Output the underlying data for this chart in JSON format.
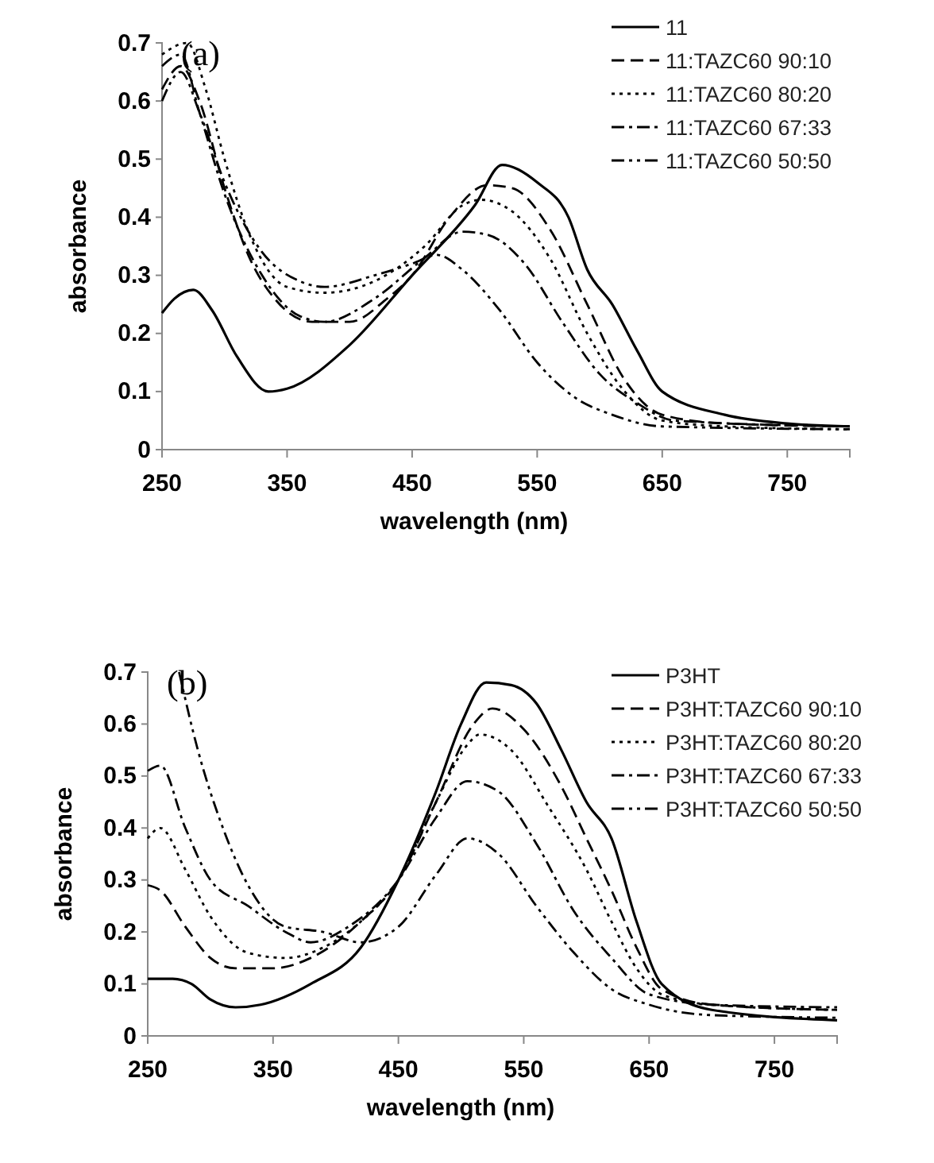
{
  "chart_data": [
    {
      "type": "line",
      "xlabel": "wavelength (nm)",
      "ylabel": "absorbance",
      "annotations": [
        "(a)"
      ],
      "xlim": [
        250,
        800
      ],
      "xticks": [
        250,
        350,
        450,
        550,
        650,
        750
      ],
      "ylim": [
        0,
        0.7
      ],
      "yticks": [
        0,
        0.1,
        0.2,
        0.3,
        0.4,
        0.5,
        0.6,
        0.7
      ],
      "grid": false,
      "legend": "top right",
      "marker": "none",
      "series": [
        {
          "name": "11",
          "color": "#000000",
          "line_style": "solid",
          "x": [
            250,
            260,
            275,
            290,
            310,
            335,
            350,
            400,
            450,
            500,
            522,
            550,
            575,
            590,
            610,
            630,
            650,
            700,
            750,
            800
          ],
          "values": [
            0.235,
            0.26,
            0.275,
            0.24,
            0.16,
            0.1,
            0.105,
            0.18,
            0.3,
            0.42,
            0.49,
            0.46,
            0.4,
            0.31,
            0.25,
            0.17,
            0.1,
            0.06,
            0.045,
            0.04
          ]
        },
        {
          "name": "11:TAZC60 90:10",
          "color": "#000000",
          "line_style": "dashed",
          "x": [
            250,
            265,
            280,
            300,
            320,
            340,
            370,
            400,
            430,
            450,
            480,
            510,
            530,
            560,
            590,
            620,
            650,
            700,
            800
          ],
          "values": [
            0.62,
            0.66,
            0.6,
            0.45,
            0.33,
            0.26,
            0.22,
            0.22,
            0.26,
            0.3,
            0.4,
            0.455,
            0.45,
            0.38,
            0.25,
            0.12,
            0.06,
            0.045,
            0.04
          ]
        },
        {
          "name": "11:TAZC60 80:20",
          "color": "#000000",
          "line_style": "dotted",
          "x": [
            250,
            270,
            285,
            300,
            320,
            350,
            380,
            420,
            460,
            490,
            505,
            530,
            560,
            590,
            620,
            650,
            700,
            800
          ],
          "values": [
            0.68,
            0.7,
            0.62,
            0.5,
            0.37,
            0.28,
            0.27,
            0.29,
            0.35,
            0.42,
            0.43,
            0.41,
            0.33,
            0.2,
            0.1,
            0.05,
            0.04,
            0.035
          ]
        },
        {
          "name": "11:TAZC60 67:33",
          "color": "#000000",
          "line_style": "dashdot",
          "x": [
            250,
            265,
            280,
            300,
            330,
            360,
            380,
            420,
            460,
            490,
            510,
            540,
            570,
            600,
            630,
            660,
            800
          ],
          "values": [
            0.66,
            0.68,
            0.58,
            0.44,
            0.3,
            0.23,
            0.22,
            0.26,
            0.33,
            0.375,
            0.37,
            0.32,
            0.22,
            0.13,
            0.08,
            0.05,
            0.04
          ]
        },
        {
          "name": "11:TAZC60 50:50",
          "color": "#000000",
          "line_style": "dashdotdot",
          "x": [
            250,
            265,
            280,
            300,
            330,
            360,
            380,
            420,
            450,
            470,
            490,
            520,
            550,
            580,
            610,
            650,
            800
          ],
          "values": [
            0.6,
            0.65,
            0.58,
            0.46,
            0.34,
            0.29,
            0.28,
            0.3,
            0.32,
            0.335,
            0.31,
            0.24,
            0.15,
            0.09,
            0.06,
            0.04,
            0.035
          ]
        }
      ]
    },
    {
      "type": "line",
      "xlabel": "wavelength (nm)",
      "ylabel": "absorbance",
      "annotations": [
        "(b)"
      ],
      "xlim": [
        250,
        800
      ],
      "xticks": [
        250,
        350,
        450,
        550,
        650,
        750
      ],
      "ylim": [
        0,
        0.7
      ],
      "yticks": [
        0,
        0.1,
        0.2,
        0.3,
        0.4,
        0.5,
        0.6,
        0.7
      ],
      "grid": false,
      "legend": "top right",
      "marker": "none",
      "series": [
        {
          "name": "P3HT",
          "color": "#000000",
          "line_style": "solid",
          "x": [
            250,
            270,
            285,
            300,
            320,
            340,
            380,
            420,
            450,
            480,
            500,
            520,
            540,
            560,
            580,
            600,
            620,
            640,
            660,
            700,
            800
          ],
          "values": [
            0.11,
            0.11,
            0.1,
            0.07,
            0.055,
            0.06,
            0.1,
            0.17,
            0.3,
            0.47,
            0.6,
            0.68,
            0.675,
            0.64,
            0.55,
            0.45,
            0.38,
            0.22,
            0.1,
            0.05,
            0.03
          ]
        },
        {
          "name": "P3HT:TAZC60 90:10",
          "color": "#000000",
          "line_style": "dashed",
          "x": [
            250,
            260,
            280,
            300,
            320,
            350,
            380,
            420,
            450,
            480,
            510,
            525,
            550,
            580,
            600,
            620,
            640,
            660,
            700,
            800
          ],
          "values": [
            0.29,
            0.28,
            0.21,
            0.15,
            0.13,
            0.13,
            0.15,
            0.22,
            0.3,
            0.45,
            0.6,
            0.63,
            0.59,
            0.48,
            0.38,
            0.28,
            0.17,
            0.09,
            0.06,
            0.05
          ]
        },
        {
          "name": "P3HT:TAZC60 80:20",
          "color": "#000000",
          "line_style": "dotted",
          "x": [
            250,
            260,
            280,
            300,
            330,
            360,
            390,
            420,
            450,
            480,
            505,
            515,
            540,
            570,
            600,
            620,
            640,
            660,
            700,
            800
          ],
          "values": [
            0.38,
            0.4,
            0.32,
            0.23,
            0.16,
            0.15,
            0.17,
            0.22,
            0.3,
            0.45,
            0.56,
            0.58,
            0.55,
            0.44,
            0.32,
            0.22,
            0.13,
            0.08,
            0.06,
            0.05
          ]
        },
        {
          "name": "P3HT:TAZC60 67:33",
          "color": "#000000",
          "line_style": "dashdot",
          "x": [
            250,
            260,
            280,
            300,
            330,
            360,
            380,
            410,
            450,
            480,
            505,
            530,
            560,
            590,
            620,
            650,
            700,
            800
          ],
          "values": [
            0.51,
            0.52,
            0.4,
            0.3,
            0.25,
            0.2,
            0.18,
            0.21,
            0.3,
            0.42,
            0.49,
            0.47,
            0.37,
            0.24,
            0.15,
            0.08,
            0.06,
            0.055
          ]
        },
        {
          "name": "P3HT:TAZC60 50:50",
          "color": "#000000",
          "line_style": "dashdotdot",
          "x": [
            275,
            290,
            310,
            330,
            360,
            390,
            420,
            450,
            480,
            505,
            530,
            560,
            590,
            620,
            650,
            700,
            800
          ],
          "values": [
            0.7,
            0.55,
            0.4,
            0.29,
            0.21,
            0.2,
            0.18,
            0.21,
            0.31,
            0.38,
            0.35,
            0.25,
            0.16,
            0.09,
            0.06,
            0.04,
            0.035
          ]
        }
      ]
    }
  ]
}
